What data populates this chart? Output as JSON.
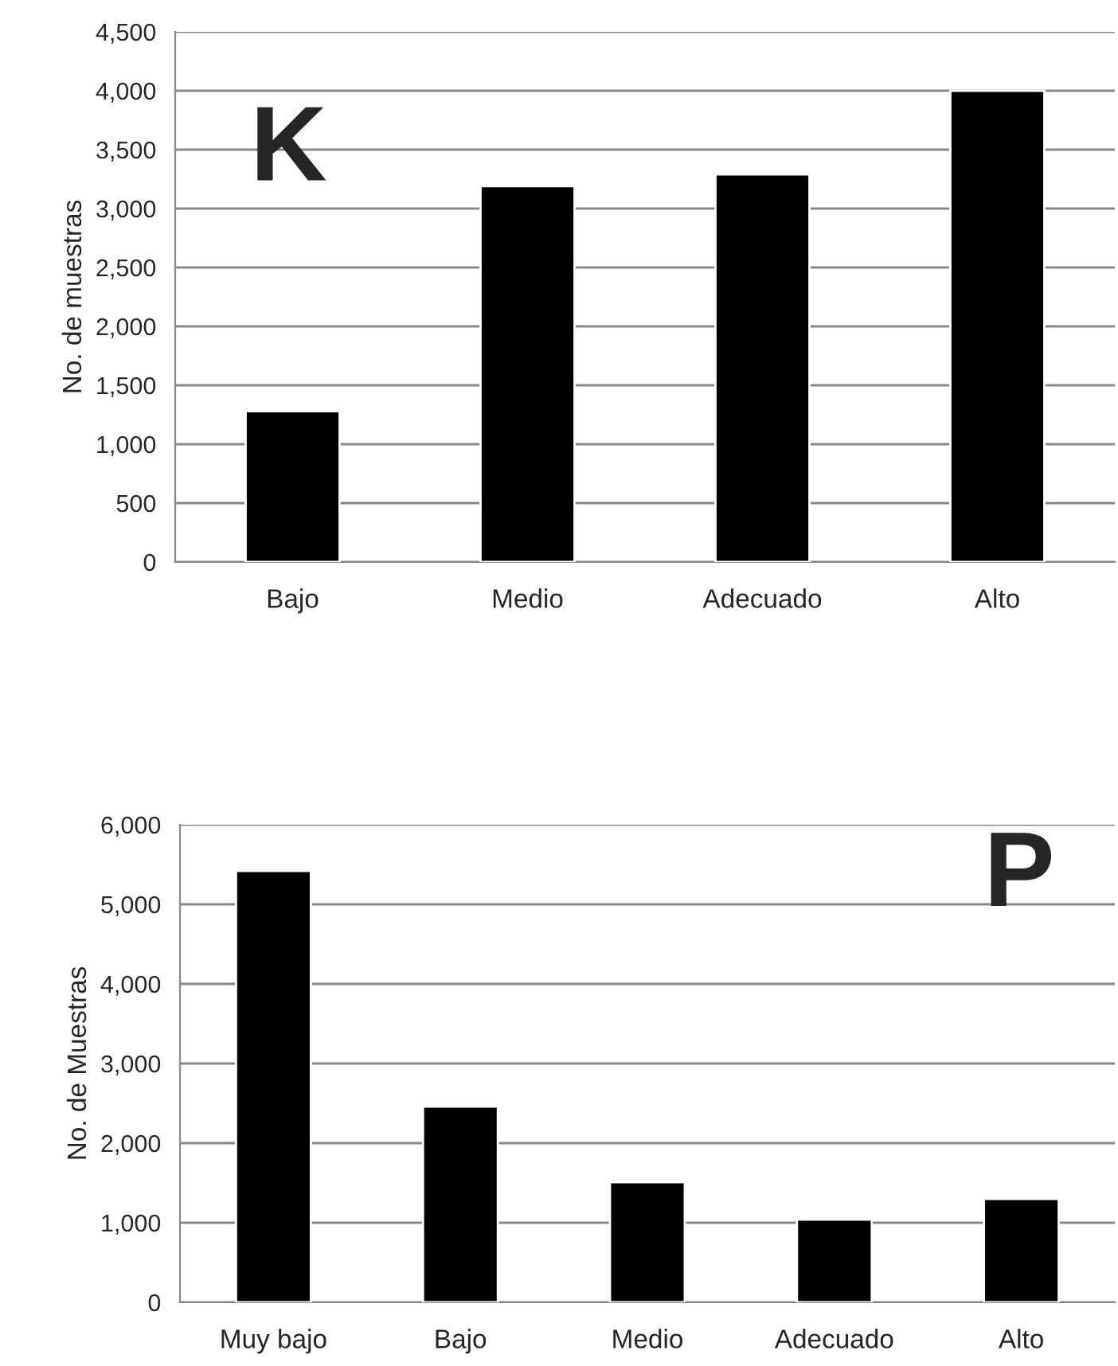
{
  "chart_data": [
    {
      "type": "bar",
      "ylabel": "No. de muestras",
      "categories": [
        "Bajo",
        "Medio",
        "Adecuado",
        "Alto"
      ],
      "values": [
        1280,
        3190,
        3290,
        4000
      ],
      "color": "#000000",
      "ylim": [
        0,
        4500
      ],
      "yticks": [
        {
          "value": 0,
          "label": "0"
        },
        {
          "value": 500,
          "label": "500"
        },
        {
          "value": 1000,
          "label": "1,000"
        },
        {
          "value": 1500,
          "label": "1,500"
        },
        {
          "value": 2000,
          "label": "2,000"
        },
        {
          "value": 2500,
          "label": "2,500"
        },
        {
          "value": 3000,
          "label": "3,000"
        },
        {
          "value": 3500,
          "label": "3,500"
        },
        {
          "value": 4000,
          "label": "4,000"
        },
        {
          "value": 4500,
          "label": "4,500"
        }
      ],
      "grid": "y",
      "annotations": [
        "K"
      ]
    },
    {
      "type": "bar",
      "ylabel": "No. de Muestras",
      "categories": [
        "Muy bajo",
        "Bajo",
        "Medio",
        "Adecuado",
        "Alto"
      ],
      "values": [
        5420,
        2460,
        1510,
        1040,
        1300
      ],
      "color": "#000000",
      "ylim": [
        0,
        6000
      ],
      "yticks": [
        {
          "value": 0,
          "label": "0"
        },
        {
          "value": 1000,
          "label": "1,000"
        },
        {
          "value": 2000,
          "label": "2,000"
        },
        {
          "value": 3000,
          "label": "3,000"
        },
        {
          "value": 4000,
          "label": "4,000"
        },
        {
          "value": 5000,
          "label": "5,000"
        },
        {
          "value": 6000,
          "label": "6,000"
        }
      ],
      "grid": "y",
      "annotations": [
        "P"
      ]
    }
  ]
}
